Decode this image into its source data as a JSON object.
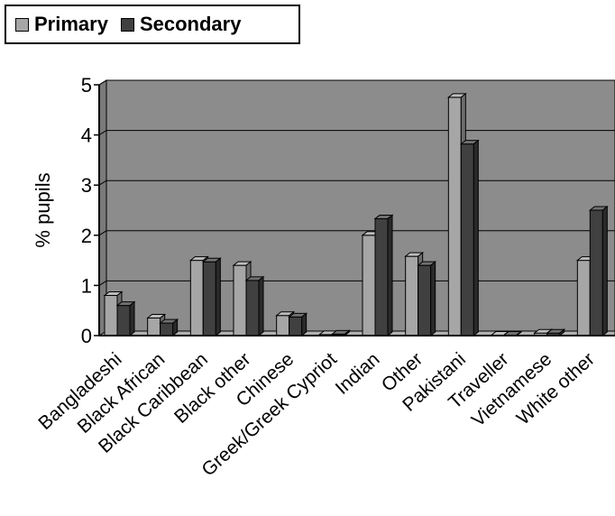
{
  "chart_data": {
    "type": "bar",
    "title": "",
    "xlabel": "",
    "ylabel": "% pupils",
    "ylim": [
      0,
      5
    ],
    "yticks": [
      "0",
      "1",
      "2",
      "3",
      "4",
      "5"
    ],
    "grid": true,
    "legend_position": "top-left",
    "categories": [
      "Bangladeshi",
      "Black African",
      "Black Caribbean",
      "Black other",
      "Chinese",
      "Greek/Greek Cypriot",
      "Indian",
      "Other",
      "Pakistani",
      "Traveller",
      "Vietnamese",
      "White other"
    ],
    "series": [
      {
        "name": "Primary",
        "color": "#a6a6a6",
        "values": [
          0.8,
          0.35,
          1.5,
          1.4,
          0.4,
          0.02,
          2.0,
          1.58,
          4.75,
          0.01,
          0.05,
          1.5
        ]
      },
      {
        "name": "Secondary",
        "color": "#404040",
        "values": [
          0.6,
          0.25,
          1.47,
          1.1,
          0.37,
          0.03,
          2.33,
          1.4,
          3.82,
          0.01,
          0.05,
          2.5
        ]
      }
    ]
  },
  "colors": {
    "plot_background": "#8c8c8c",
    "floor": "#b0b0b0"
  }
}
